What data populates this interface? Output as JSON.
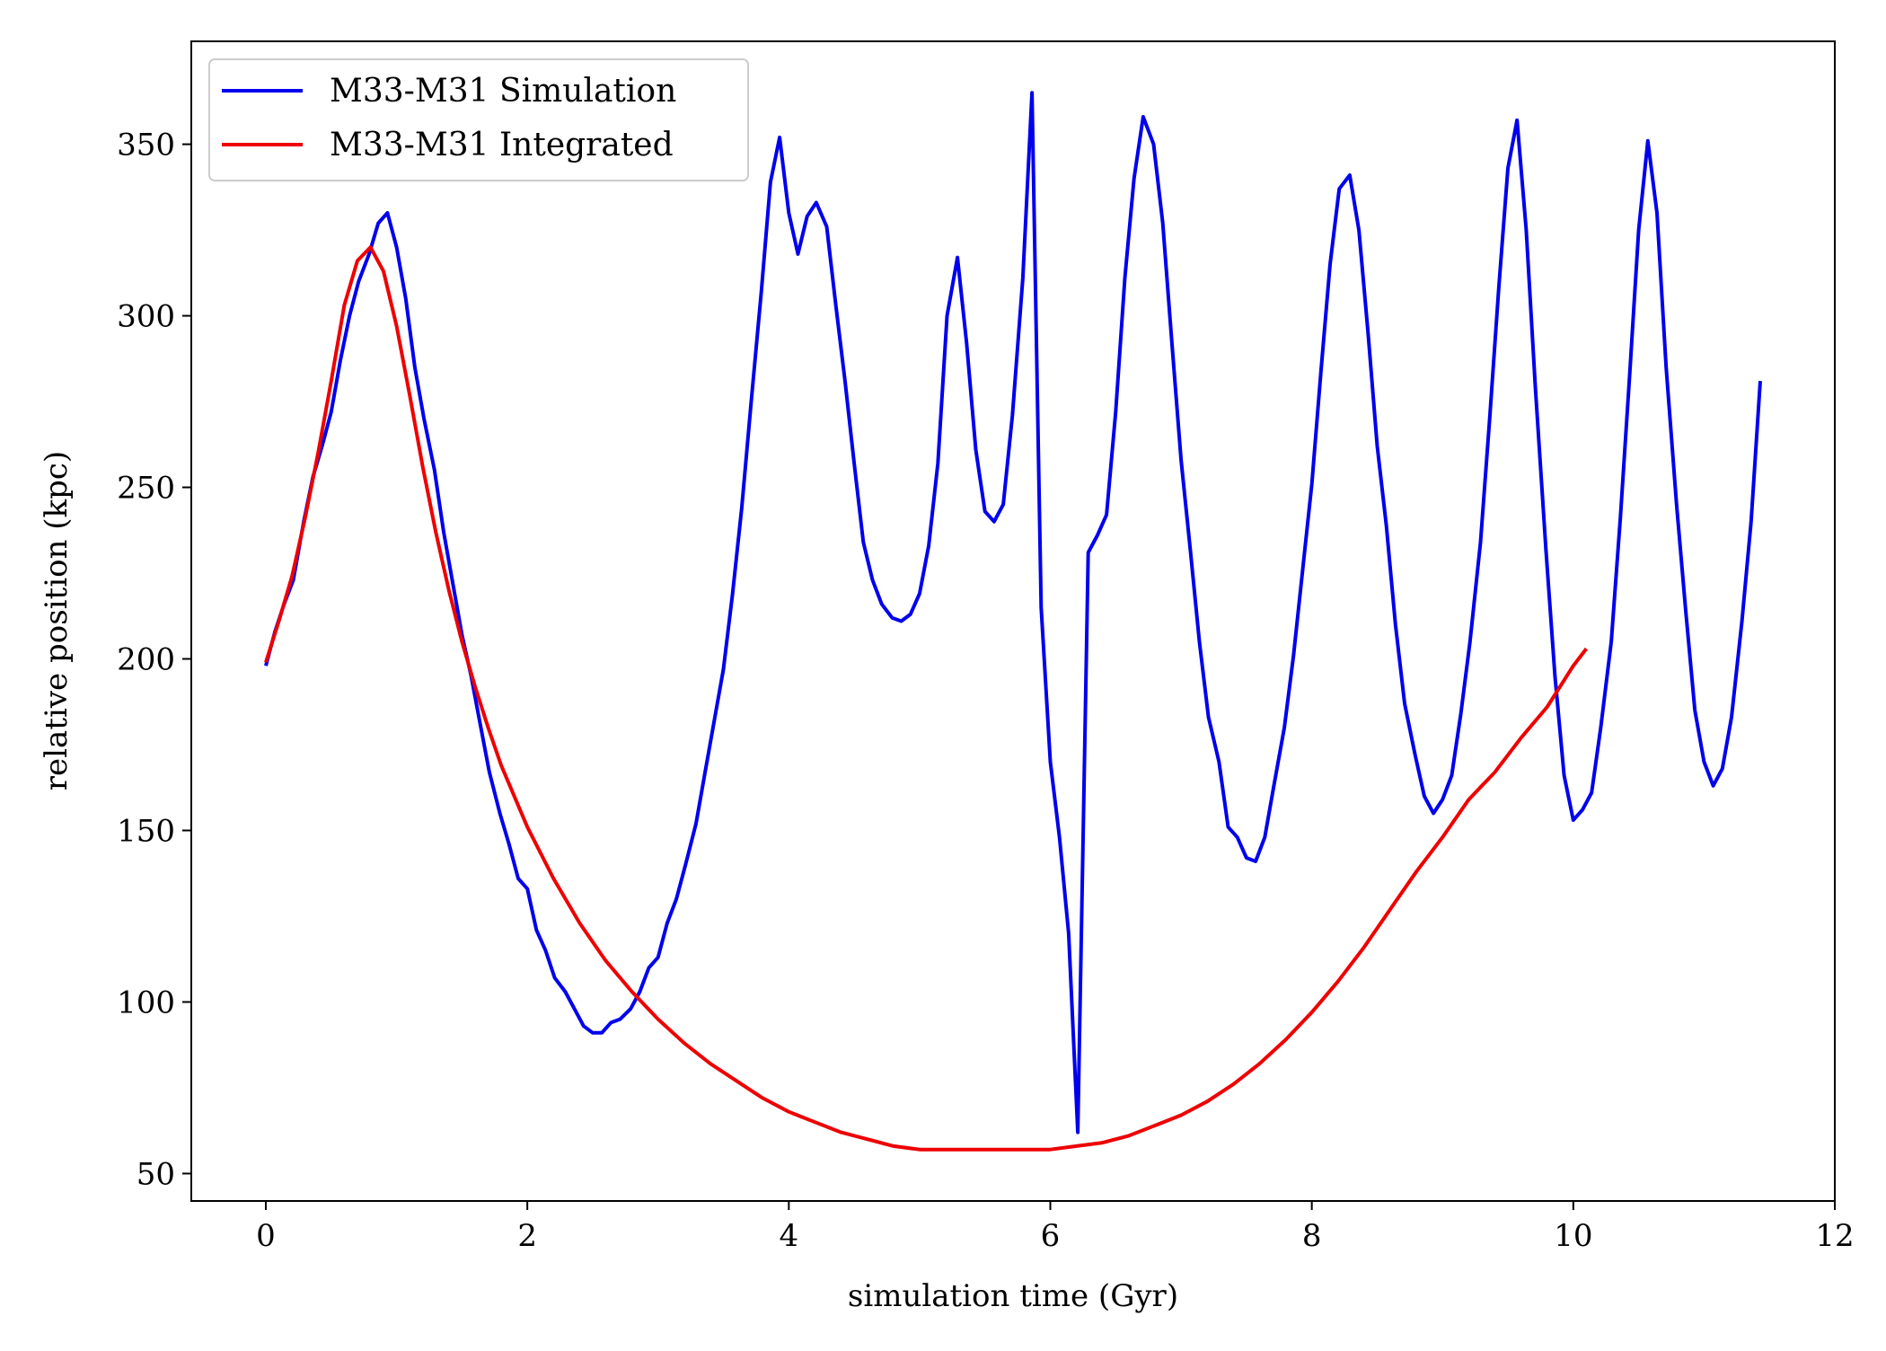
{
  "chart_data": {
    "type": "line",
    "title": "",
    "xlabel": "simulation time (Gyr)",
    "ylabel": "relative position (kpc)",
    "xlim": [
      -0.57,
      12.0
    ],
    "ylim": [
      42,
      380
    ],
    "xticks": [
      0,
      2,
      4,
      6,
      8,
      10,
      12
    ],
    "yticks": [
      50,
      100,
      150,
      200,
      250,
      300,
      350
    ],
    "legend": "top-left",
    "grid": false,
    "series": [
      {
        "name": "M33-M31 Simulation",
        "color": "#0000ee",
        "x": [
          0.0,
          0.07,
          0.14,
          0.21,
          0.29,
          0.36,
          0.43,
          0.5,
          0.57,
          0.64,
          0.71,
          0.79,
          0.86,
          0.93,
          1.0,
          1.07,
          1.14,
          1.21,
          1.29,
          1.36,
          1.43,
          1.5,
          1.57,
          1.64,
          1.71,
          1.79,
          1.86,
          1.93,
          2.0,
          2.07,
          2.14,
          2.21,
          2.29,
          2.36,
          2.43,
          2.5,
          2.57,
          2.64,
          2.71,
          2.79,
          2.86,
          2.93,
          3.0,
          3.07,
          3.14,
          3.21,
          3.29,
          3.36,
          3.43,
          3.5,
          3.57,
          3.64,
          3.71,
          3.79,
          3.86,
          3.93,
          4.0,
          4.07,
          4.14,
          4.21,
          4.29,
          4.36,
          4.43,
          4.5,
          4.57,
          4.64,
          4.71,
          4.79,
          4.86,
          4.93,
          5.0,
          5.07,
          5.14,
          5.21,
          5.29,
          5.36,
          5.43,
          5.5,
          5.57,
          5.64,
          5.71,
          5.79,
          5.86,
          5.93,
          6.0,
          6.07,
          6.14,
          6.21,
          6.29,
          6.36,
          6.43,
          6.5,
          6.57,
          6.64,
          6.71,
          6.79,
          6.86,
          6.93,
          7.0,
          7.07,
          7.14,
          7.21,
          7.29,
          7.36,
          7.43,
          7.5,
          7.57,
          7.64,
          7.71,
          7.79,
          7.86,
          7.93,
          8.0,
          8.07,
          8.14,
          8.21,
          8.29,
          8.36,
          8.43,
          8.5,
          8.57,
          8.64,
          8.71,
          8.79,
          8.86,
          8.93,
          9.0,
          9.07,
          9.14,
          9.21,
          9.29,
          9.36,
          9.43,
          9.5,
          9.57,
          9.64,
          9.71,
          9.79,
          9.86,
          9.93,
          10.0,
          10.07,
          10.14,
          10.21,
          10.29,
          10.36,
          10.43,
          10.5,
          10.57,
          10.64,
          10.71,
          10.79,
          10.86,
          10.93,
          11.0,
          11.07,
          11.14,
          11.21,
          11.29,
          11.36,
          11.43
        ],
        "y": [
          198,
          208,
          216,
          223,
          240,
          253,
          262,
          272,
          287,
          300,
          310,
          318,
          327,
          330,
          320,
          305,
          285,
          270,
          255,
          237,
          222,
          207,
          195,
          181,
          167,
          155,
          146,
          136,
          133,
          121,
          115,
          107,
          103,
          98,
          93,
          91,
          91,
          94,
          95,
          98,
          103,
          110,
          113,
          123,
          130,
          140,
          152,
          167,
          182,
          197,
          219,
          244,
          274,
          307,
          339,
          352,
          330,
          318,
          329,
          333,
          326,
          303,
          281,
          257,
          234,
          223,
          216,
          212,
          211,
          213,
          219,
          233,
          257,
          300,
          317,
          292,
          261,
          243,
          240,
          245,
          271,
          311,
          365,
          215,
          170,
          148,
          120,
          62,
          231,
          236,
          242,
          272,
          311,
          340,
          358,
          350,
          327,
          292,
          258,
          232,
          205,
          183,
          170,
          151,
          148,
          142,
          141,
          148,
          163,
          180,
          201,
          226,
          251,
          284,
          315,
          337,
          341,
          325,
          295,
          262,
          239,
          210,
          187,
          172,
          160,
          155,
          159,
          166,
          184,
          205,
          234,
          270,
          308,
          343,
          357,
          325,
          279,
          232,
          195,
          166,
          153,
          156,
          161,
          180,
          205,
          241,
          282,
          325,
          351,
          330,
          285,
          245,
          214,
          185,
          170,
          163,
          168,
          183,
          211,
          240,
          281
        ]
      },
      {
        "name": "M33-M31 Integrated",
        "color": "#ee0000",
        "x": [
          0.0,
          0.1,
          0.2,
          0.3,
          0.4,
          0.5,
          0.6,
          0.7,
          0.8,
          0.9,
          1.0,
          1.1,
          1.2,
          1.3,
          1.4,
          1.5,
          1.6,
          1.7,
          1.8,
          1.9,
          2.0,
          2.2,
          2.4,
          2.6,
          2.8,
          3.0,
          3.2,
          3.4,
          3.6,
          3.8,
          4.0,
          4.2,
          4.4,
          4.6,
          4.8,
          5.0,
          5.2,
          5.4,
          5.6,
          5.8,
          5.9,
          6.0,
          6.2,
          6.4,
          6.6,
          6.8,
          7.0,
          7.2,
          7.4,
          7.6,
          7.8,
          8.0,
          8.2,
          8.4,
          8.6,
          8.8,
          9.0,
          9.2,
          9.4,
          9.6,
          9.8,
          10.0,
          10.1
        ],
        "y": [
          199,
          211,
          224,
          241,
          260,
          281,
          303,
          316,
          320,
          313,
          297,
          277,
          256,
          237,
          220,
          205,
          192,
          180,
          169,
          160,
          151,
          136,
          123,
          112,
          103,
          95,
          88,
          82,
          77,
          72,
          68,
          65,
          62,
          60,
          58,
          57,
          57,
          57,
          57,
          57,
          57,
          57,
          58,
          59,
          61,
          64,
          67,
          71,
          76,
          82,
          89,
          97,
          106,
          116,
          127,
          138,
          148,
          159,
          167,
          177,
          186,
          198,
          203
        ]
      }
    ]
  }
}
